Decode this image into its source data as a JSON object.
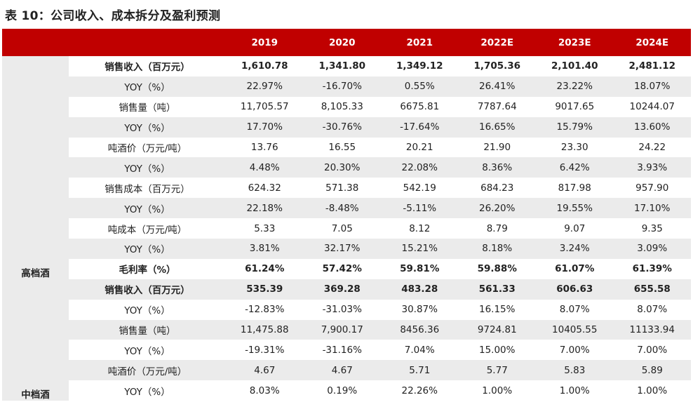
{
  "title": "表 10：公司收入、成本拆分及盈利预测",
  "header": {
    "corner": "",
    "label": "",
    "years": [
      "2019",
      "2020",
      "2021",
      "2022E",
      "2023E",
      "2024E"
    ]
  },
  "segments": [
    {
      "name": "高档酒",
      "rows": [
        {
          "label": "销售收入（百万元）",
          "bold": true,
          "shade": false,
          "values": [
            "1,610.78",
            "1,341.80",
            "1,349.12",
            "1,705.36",
            "2,101.40",
            "2,481.12"
          ]
        },
        {
          "label": "YOY（%）",
          "bold": false,
          "shade": true,
          "values": [
            "22.97%",
            "-16.70%",
            "0.55%",
            "26.41%",
            "23.22%",
            "18.07%"
          ]
        },
        {
          "label": "销售量（吨）",
          "bold": false,
          "shade": false,
          "values": [
            "11,705.57",
            "8,105.33",
            "6675.81",
            "7787.64",
            "9017.65",
            "10244.07"
          ]
        },
        {
          "label": "YOY（%）",
          "bold": false,
          "shade": true,
          "values": [
            "17.70%",
            "-30.76%",
            "-17.64%",
            "16.65%",
            "15.79%",
            "13.60%"
          ]
        },
        {
          "label": "吨酒价（万元/吨）",
          "bold": false,
          "shade": false,
          "values": [
            "13.76",
            "16.55",
            "20.21",
            "21.90",
            "23.30",
            "24.22"
          ]
        },
        {
          "label": "YOY（%）",
          "bold": false,
          "shade": true,
          "values": [
            "4.48%",
            "20.30%",
            "22.08%",
            "8.36%",
            "6.42%",
            "3.93%"
          ]
        },
        {
          "label": "销售成本（百万元）",
          "bold": false,
          "shade": false,
          "values": [
            "624.32",
            "571.38",
            "542.19",
            "684.23",
            "817.98",
            "957.90"
          ]
        },
        {
          "label": "YOY（%）",
          "bold": false,
          "shade": true,
          "values": [
            "22.18%",
            "-8.48%",
            "-5.11%",
            "26.20%",
            "19.55%",
            "17.10%"
          ]
        },
        {
          "label": "吨成本（万元/吨）",
          "bold": false,
          "shade": false,
          "values": [
            "5.33",
            "7.05",
            "8.12",
            "8.79",
            "9.07",
            "9.35"
          ]
        },
        {
          "label": "YOY（%）",
          "bold": false,
          "shade": true,
          "values": [
            "3.81%",
            "32.17%",
            "15.21%",
            "8.18%",
            "3.24%",
            "3.09%"
          ]
        },
        {
          "label": "毛利率（%）",
          "bold": true,
          "shade": false,
          "values": [
            "61.24%",
            "57.42%",
            "59.81%",
            "59.88%",
            "61.07%",
            "61.39%"
          ]
        }
      ]
    },
    {
      "name": "中档酒",
      "rows": [
        {
          "label": "销售收入（百万元）",
          "bold": true,
          "shade": true,
          "values": [
            "535.39",
            "369.28",
            "483.28",
            "561.33",
            "606.63",
            "655.58"
          ]
        },
        {
          "label": "YOY（%）",
          "bold": false,
          "shade": false,
          "values": [
            "-12.83%",
            "-31.03%",
            "30.87%",
            "16.15%",
            "8.07%",
            "8.07%"
          ]
        },
        {
          "label": "销售量（吨）",
          "bold": false,
          "shade": true,
          "values": [
            "11,475.88",
            "7,900.17",
            "8456.36",
            "9724.81",
            "10405.55",
            "11133.94"
          ]
        },
        {
          "label": "YOY（%）",
          "bold": false,
          "shade": false,
          "values": [
            "-19.31%",
            "-31.16%",
            "7.04%",
            "15.00%",
            "7.00%",
            "7.00%"
          ]
        },
        {
          "label": "吨酒价（万元/吨）",
          "bold": false,
          "shade": true,
          "values": [
            "4.67",
            "4.67",
            "5.71",
            "5.77",
            "5.83",
            "5.89"
          ]
        },
        {
          "label": "YOY（%）",
          "bold": false,
          "shade": false,
          "values": [
            "8.03%",
            "0.19%",
            "22.26%",
            "1.00%",
            "1.00%",
            "1.00%"
          ]
        }
      ]
    }
  ],
  "colors": {
    "header_bg": "#c00000",
    "header_text": "#ffffff",
    "shade": "#ebebeb"
  }
}
